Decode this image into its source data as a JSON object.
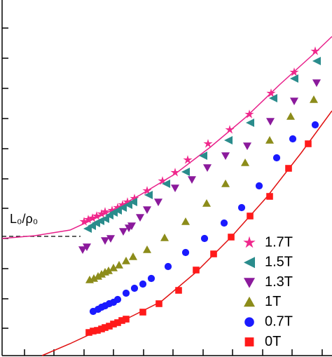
{
  "chart_data": {
    "type": "scatter",
    "xlim": [
      3,
      474
    ],
    "ylim": [
      0,
      507
    ],
    "xticks": [
      35,
      77,
      120,
      162,
      205,
      247,
      290,
      332,
      375,
      417,
      460
    ],
    "yticks": [
      39,
      81,
      124,
      167,
      210,
      252,
      295,
      338,
      381,
      424,
      467
    ],
    "series": [
      {
        "name": "1.7T",
        "color": "#f0288c",
        "marker": "star",
        "x": [
          120,
          126,
          132,
          138,
          145,
          150,
          160,
          168,
          175,
          182,
          192,
          210,
          232,
          250,
          268,
          297,
          328,
          356,
          387,
          420,
          450
        ],
        "values": [
          191,
          194,
          196,
          199,
          202,
          205,
          207,
          211,
          215,
          219,
          224,
          235,
          249,
          261,
          279,
          302,
          322,
          344,
          374,
          404,
          434
        ]
      },
      {
        "name": "1.5T",
        "color": "#2a8c8c",
        "marker": "left",
        "x": [
          125,
          131,
          137,
          143,
          150,
          156,
          162,
          168,
          175,
          183,
          190,
          212,
          237,
          265,
          290,
          326,
          357,
          390,
          420,
          452
        ],
        "values": [
          181,
          185,
          189,
          192,
          195,
          200,
          204,
          207,
          211,
          215,
          219,
          229,
          245,
          262,
          285,
          307,
          332,
          367,
          395,
          420
        ]
      },
      {
        "name": "1.3T",
        "color": "#8b1a9c",
        "marker": "down",
        "x": [
          118,
          124,
          150,
          158,
          176,
          184,
          188,
          200,
          210,
          226,
          250,
          274,
          296,
          322,
          353,
          386,
          420,
          452
        ],
        "values": [
          151,
          155,
          164,
          167,
          177,
          182,
          185,
          197,
          208,
          219,
          239,
          251,
          268,
          285,
          299,
          334,
          363,
          389
        ]
      },
      {
        "name": "1T",
        "color": "#8c8c1a",
        "marker": "up",
        "x": [
          128,
          134,
          140,
          145,
          150,
          155,
          162,
          170,
          180,
          190,
          210,
          235,
          265,
          295,
          322,
          350,
          385,
          415,
          448
        ],
        "values": [
          108,
          110,
          113,
          116,
          119,
          121,
          125,
          129,
          135,
          141,
          151,
          168,
          191,
          217,
          245,
          275,
          307,
          341,
          365
        ]
      },
      {
        "name": "0.7T",
        "color": "#1a1aff",
        "marker": "circle",
        "x": [
          133,
          140,
          145,
          150,
          156,
          162,
          168,
          180,
          192,
          204,
          216,
          240,
          265,
          292,
          320,
          345,
          370,
          395,
          418,
          450
        ],
        "values": [
          63,
          66,
          69,
          71,
          74,
          76,
          80,
          89,
          96,
          102,
          110,
          127,
          147,
          167,
          189,
          211,
          242,
          282,
          309,
          329
        ]
      },
      {
        "name": "0T",
        "color": "#ff1a1a",
        "marker": "square",
        "x": [
          127,
          133,
          139,
          145,
          150,
          156,
          162,
          168,
          174,
          180,
          204,
          227,
          255,
          280,
          305,
          330,
          357,
          385,
          412,
          440
        ],
        "values": [
          33,
          35,
          36,
          38,
          40,
          42,
          45,
          47,
          50,
          52,
          62,
          74,
          93,
          122,
          145,
          169,
          199,
          227,
          267,
          302
        ]
      }
    ],
    "fits": [
      {
        "color": "#e8208a",
        "x": [
          3,
          50,
          100,
          150,
          200,
          250,
          300,
          350,
          400,
          450,
          474
        ],
        "values": [
          167,
          171,
          179,
          202,
          229,
          259,
          297,
          339,
          387,
          432,
          455
        ]
      },
      {
        "color": "#e01010",
        "x": [
          60,
          100,
          130,
          180,
          230,
          280,
          330,
          380,
          430,
          474
        ],
        "values": [
          0,
          17,
          31,
          52,
          77,
          119,
          169,
          225,
          289,
          349
        ]
      }
    ],
    "reference": {
      "label": "L₀/ρ₀",
      "y": 170,
      "x": [
        3,
        115
      ]
    }
  }
}
